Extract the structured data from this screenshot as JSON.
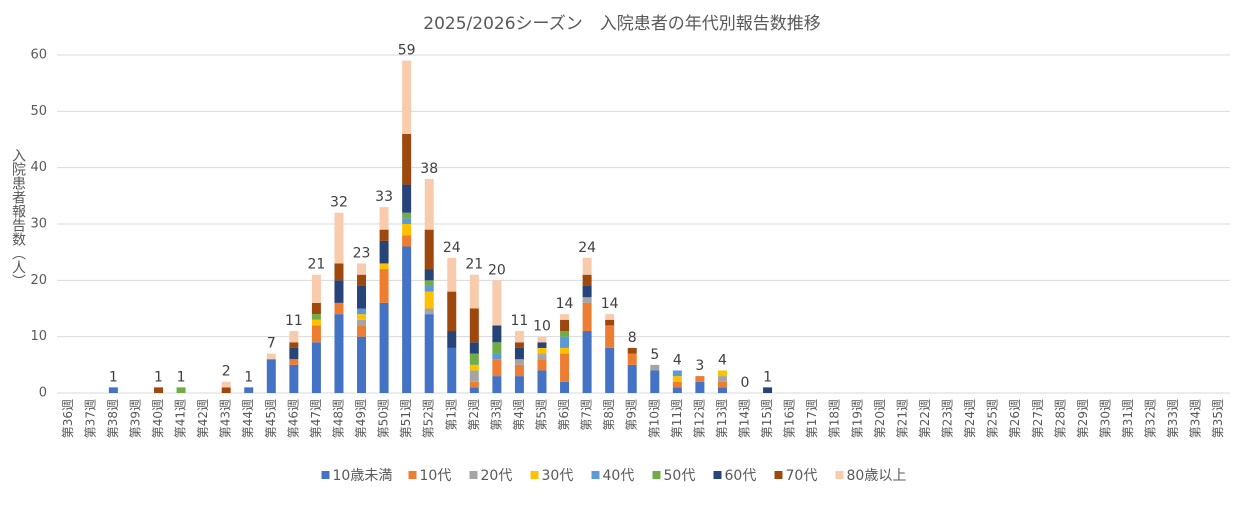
{
  "chart_data": {
    "type": "stacked_bar",
    "title": "2025/2026シーズン　入院患者の年代別報告数推移",
    "y_label": "入院患者報告数（人）",
    "categories": [
      "第36週",
      "第37週",
      "第38週",
      "第39週",
      "第40週",
      "第41週",
      "第42週",
      "第43週",
      "第44週",
      "第45週",
      "第46週",
      "第47週",
      "第48週",
      "第49週",
      "第50週",
      "第51週",
      "第52週",
      "第1週",
      "第2週",
      "第3週",
      "第4週",
      "第5週",
      "第6週",
      "第7週",
      "第8週",
      "第9週",
      "第10週",
      "第11週",
      "第12週",
      "第13週",
      "第14週",
      "第15週",
      "第16週",
      "第17週",
      "第18週",
      "第19週",
      "第20週",
      "第21週",
      "第22週",
      "第23週",
      "第24週",
      "第25週",
      "第26週",
      "第27週",
      "第28週",
      "第29週",
      "第30週",
      "第31週",
      "第32週",
      "第33週",
      "第34週",
      "第35週"
    ],
    "series": [
      {
        "name": "10歳未満",
        "color": "#4472c4",
        "values": [
          0,
          0,
          1,
          0,
          0,
          0,
          0,
          0,
          1,
          6,
          5,
          9,
          14,
          10,
          16,
          26,
          14,
          8,
          1,
          3,
          3,
          4,
          2,
          11,
          8,
          5,
          4,
          1,
          2,
          1,
          0,
          0,
          0,
          0,
          0,
          0,
          0,
          0,
          0,
          0,
          0,
          0,
          0,
          0,
          0,
          0,
          0,
          0,
          0,
          0,
          0,
          0
        ]
      },
      {
        "name": "10代",
        "color": "#ed7d31",
        "values": [
          0,
          0,
          0,
          0,
          0,
          0,
          0,
          0,
          0,
          0,
          1,
          3,
          2,
          2,
          6,
          2,
          0,
          0,
          1,
          3,
          2,
          2,
          5,
          5,
          4,
          2,
          0,
          1,
          1,
          1,
          0,
          0,
          0,
          0,
          0,
          0,
          0,
          0,
          0,
          0,
          0,
          0,
          0,
          0,
          0,
          0,
          0,
          0,
          0,
          0,
          0,
          0
        ]
      },
      {
        "name": "20代",
        "color": "#a5a5a5",
        "values": [
          0,
          0,
          0,
          0,
          0,
          0,
          0,
          0,
          0,
          0,
          0,
          0,
          0,
          1,
          0,
          0,
          1,
          0,
          2,
          0,
          1,
          1,
          0,
          1,
          0,
          0,
          1,
          0,
          0,
          1,
          0,
          0,
          0,
          0,
          0,
          0,
          0,
          0,
          0,
          0,
          0,
          0,
          0,
          0,
          0,
          0,
          0,
          0,
          0,
          0,
          0,
          0
        ]
      },
      {
        "name": "30代",
        "color": "#ffc000",
        "values": [
          0,
          0,
          0,
          0,
          0,
          0,
          0,
          0,
          0,
          0,
          0,
          1,
          0,
          1,
          1,
          2,
          3,
          0,
          1,
          0,
          0,
          1,
          1,
          0,
          0,
          0,
          0,
          1,
          0,
          1,
          0,
          0,
          0,
          0,
          0,
          0,
          0,
          0,
          0,
          0,
          0,
          0,
          0,
          0,
          0,
          0,
          0,
          0,
          0,
          0,
          0,
          0
        ]
      },
      {
        "name": "40代",
        "color": "#5b9bd5",
        "values": [
          0,
          0,
          0,
          0,
          0,
          0,
          0,
          0,
          0,
          0,
          0,
          0,
          0,
          1,
          0,
          1,
          1,
          0,
          0,
          1,
          0,
          0,
          2,
          0,
          0,
          0,
          0,
          1,
          0,
          0,
          0,
          0,
          0,
          0,
          0,
          0,
          0,
          0,
          0,
          0,
          0,
          0,
          0,
          0,
          0,
          0,
          0,
          0,
          0,
          0,
          0,
          0
        ]
      },
      {
        "name": "50代",
        "color": "#70ad47",
        "values": [
          0,
          0,
          0,
          0,
          0,
          1,
          0,
          0,
          0,
          0,
          0,
          1,
          0,
          0,
          0,
          1,
          1,
          0,
          2,
          2,
          0,
          0,
          1,
          0,
          0,
          0,
          0,
          0,
          0,
          0,
          0,
          0,
          0,
          0,
          0,
          0,
          0,
          0,
          0,
          0,
          0,
          0,
          0,
          0,
          0,
          0,
          0,
          0,
          0,
          0,
          0,
          0
        ]
      },
      {
        "name": "60代",
        "color": "#264478",
        "values": [
          0,
          0,
          0,
          0,
          0,
          0,
          0,
          0,
          0,
          0,
          2,
          0,
          4,
          4,
          4,
          5,
          2,
          3,
          2,
          3,
          2,
          1,
          0,
          2,
          0,
          0,
          0,
          0,
          0,
          0,
          0,
          1,
          0,
          0,
          0,
          0,
          0,
          0,
          0,
          0,
          0,
          0,
          0,
          0,
          0,
          0,
          0,
          0,
          0,
          0,
          0,
          0
        ]
      },
      {
        "name": "70代",
        "color": "#9e480e",
        "values": [
          0,
          0,
          0,
          0,
          1,
          0,
          0,
          1,
          0,
          0,
          1,
          2,
          3,
          2,
          2,
          9,
          7,
          7,
          6,
          0,
          1,
          0,
          2,
          2,
          1,
          1,
          0,
          0,
          0,
          0,
          0,
          0,
          0,
          0,
          0,
          0,
          0,
          0,
          0,
          0,
          0,
          0,
          0,
          0,
          0,
          0,
          0,
          0,
          0,
          0,
          0,
          0
        ]
      },
      {
        "name": "80歳以上",
        "color": "#f8cbad",
        "values": [
          0,
          0,
          0,
          0,
          0,
          0,
          0,
          1,
          0,
          1,
          2,
          5,
          9,
          2,
          4,
          13,
          9,
          6,
          6,
          8,
          2,
          1,
          1,
          3,
          1,
          0,
          0,
          0,
          0,
          0,
          0,
          0,
          0,
          0,
          0,
          0,
          0,
          0,
          0,
          0,
          0,
          0,
          0,
          0,
          0,
          0,
          0,
          0,
          0,
          0,
          0,
          0
        ]
      }
    ],
    "total_labels": [
      null,
      null,
      1,
      null,
      1,
      1,
      null,
      2,
      1,
      7,
      11,
      21,
      32,
      23,
      33,
      59,
      38,
      24,
      21,
      20,
      11,
      10,
      14,
      24,
      14,
      8,
      5,
      4,
      3,
      4,
      0,
      1,
      null,
      null,
      null,
      null,
      null,
      null,
      null,
      null,
      null,
      null,
      null,
      null,
      null,
      null,
      null,
      null,
      null,
      null,
      null,
      null
    ],
    "ylim": [
      0,
      60
    ],
    "yticks": [
      0,
      10,
      20,
      30,
      40,
      50,
      60
    ],
    "grid": true,
    "legend": "bottom"
  }
}
